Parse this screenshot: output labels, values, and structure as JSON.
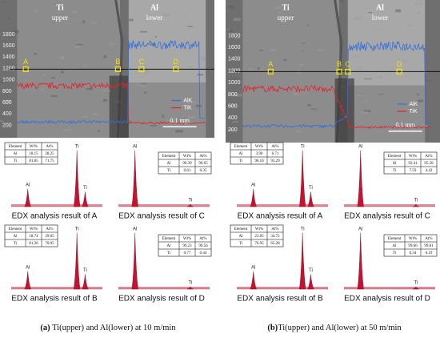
{
  "panels": [
    {
      "image": {
        "upper_material": "Ti",
        "upper_word": "upper",
        "lower_material": "Al",
        "lower_word": "lower",
        "axis_values": [
          1800,
          1600,
          1400,
          1200,
          1000,
          800,
          600,
          400,
          200
        ],
        "points": [
          "A",
          "B",
          "C",
          "D"
        ],
        "legend": [
          "AlK",
          "TiK"
        ],
        "scale_bar": "0.1 mm"
      },
      "spectra": [
        {
          "label": "EDX analysis result of A",
          "peaks": [
            "Al",
            "Ti",
            "Ti"
          ],
          "table": {
            "header": [
              "Element",
              "Wt%",
              "At%"
            ],
            "rows": [
              [
                "Al",
                "18.15",
                "28.25"
              ],
              [
                "Ti",
                "81.85",
                "71.75"
              ]
            ]
          }
        },
        {
          "label": "EDX analysis result of C",
          "peaks": [
            "Al",
            "Ti"
          ],
          "table": {
            "header": [
              "Element",
              "Wt%",
              "At%"
            ],
            "rows": [
              [
                "Al",
                "99.39",
                "99.65"
              ],
              [
                "Ti",
                "0.61",
                "0.35"
              ]
            ]
          }
        },
        {
          "label": "EDX analysis result of B",
          "peaks": [
            "Al",
            "Ti",
            "Ti"
          ],
          "table": {
            "header": [
              "Element",
              "Wt%",
              "At%"
            ],
            "rows": [
              [
                "Al",
                "18.74",
                "29.05"
              ],
              [
                "Ti",
                "81.26",
                "70.95"
              ]
            ]
          }
        },
        {
          "label": "EDX analysis result of D",
          "peaks": [
            "Al",
            "Ti"
          ],
          "table": {
            "header": [
              "Element",
              "Wt%",
              "At%"
            ],
            "rows": [
              [
                "Al",
                "99.23",
                "99.56"
              ],
              [
                "Ti",
                "0.77",
                "0.44"
              ]
            ]
          }
        }
      ],
      "caption": {
        "label": "(a)",
        "text": " Ti(upper) and Al(lower) at 10 m/min"
      }
    },
    {
      "image": {
        "upper_material": "Ti",
        "upper_word": "upper",
        "lower_material": "Al",
        "lower_word": "lower",
        "axis_values": [
          1800,
          1600,
          1400,
          1200,
          1000,
          800,
          600,
          400,
          200
        ],
        "points": [
          "A",
          "B",
          "C",
          "D"
        ],
        "legend": [
          "AlK",
          "TiK"
        ],
        "scale_bar": "0.1 mm"
      },
      "spectra": [
        {
          "label": "EDX analysis result of A",
          "peaks": [
            "Al",
            "Ti",
            "Ti"
          ],
          "table": {
            "header": [
              "Element",
              "Wt%",
              "At%"
            ],
            "rows": [
              [
                "Al",
                "3.90",
                "6.71"
              ],
              [
                "Ti",
                "96.10",
                "93.29"
              ]
            ]
          }
        },
        {
          "label": "EDX analysis result of C",
          "peaks": [
            "Al",
            "Ti"
          ],
          "table": {
            "header": [
              "Element",
              "Wt%",
              "At%"
            ],
            "rows": [
              [
                "Al",
                "92.41",
                "95.58"
              ],
              [
                "Ti",
                "7.59",
                "4.42"
              ]
            ]
          }
        },
        {
          "label": "EDX analysis result of B",
          "peaks": [
            "Al",
            "Ti",
            "Ti"
          ],
          "table": {
            "header": [
              "Element",
              "Wt%",
              "At%"
            ],
            "rows": [
              [
                "Al",
                "23.05",
                "34.72"
              ],
              [
                "Ti",
                "76.95",
                "65.28"
              ]
            ]
          }
        },
        {
          "label": "EDX analysis result of D",
          "peaks": [
            "Al",
            "Ti"
          ],
          "table": {
            "header": [
              "Element",
              "Wt%",
              "At%"
            ],
            "rows": [
              [
                "Al",
                "99.66",
                "99.81"
              ],
              [
                "Ti",
                "0.34",
                "0.19"
              ]
            ]
          }
        }
      ],
      "caption": {
        "label": "(b)",
        "text": "Ti(upper) and Al(lower) at 50 m/min"
      }
    }
  ]
}
